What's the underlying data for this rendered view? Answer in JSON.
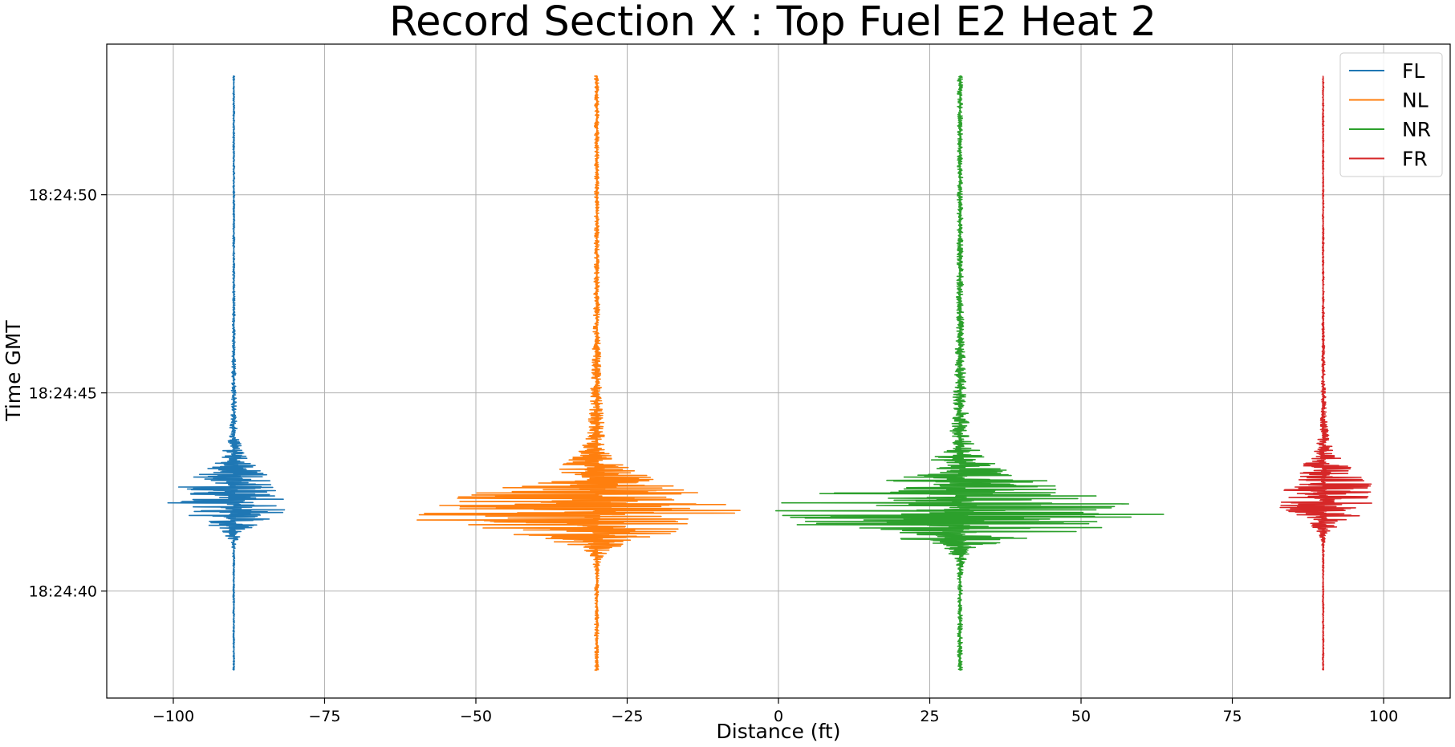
{
  "chart_data": {
    "type": "line",
    "title": "Record Section X : Top Fuel E2 Heat 2",
    "xlabel": "Distance (ft)",
    "ylabel": "Time GMT",
    "xlim": [
      -111,
      111
    ],
    "ylim": [
      "18:24:37.3",
      "18:24:53.8"
    ],
    "x_ticks": [
      -100,
      -75,
      -50,
      -25,
      0,
      25,
      50,
      75,
      100
    ],
    "x_tick_labels": [
      "−100",
      "−75",
      "−50",
      "−25",
      "0",
      "25",
      "50",
      "75",
      "100"
    ],
    "y_ticks": [
      "18:24:40",
      "18:24:45",
      "18:24:50"
    ],
    "y_tick_labels": [
      "18:24:40",
      "18:24:45",
      "18:24:50"
    ],
    "grid": true,
    "legend_position": "top-right",
    "time_range": [
      "18:24:38.0",
      "18:24:53.0"
    ],
    "series": [
      {
        "name": "FL",
        "color": "#1f77b4",
        "center": -90,
        "max_right": 10.5,
        "max_left": 11.7,
        "peak_time": "18:24:42.2"
      },
      {
        "name": "NL",
        "color": "#ff7f0e",
        "center": -30,
        "max_right": 26,
        "max_left": 32.3,
        "peak_time": "18:24:41.9"
      },
      {
        "name": "NR",
        "color": "#2ca02c",
        "center": 30,
        "max_right": 35,
        "max_left": 34.5,
        "peak_time": "18:24:41.9"
      },
      {
        "name": "FR",
        "color": "#d62728",
        "center": 90,
        "max_right": 10.5,
        "max_left": 8.3,
        "peak_time": "18:24:42.3"
      }
    ]
  }
}
